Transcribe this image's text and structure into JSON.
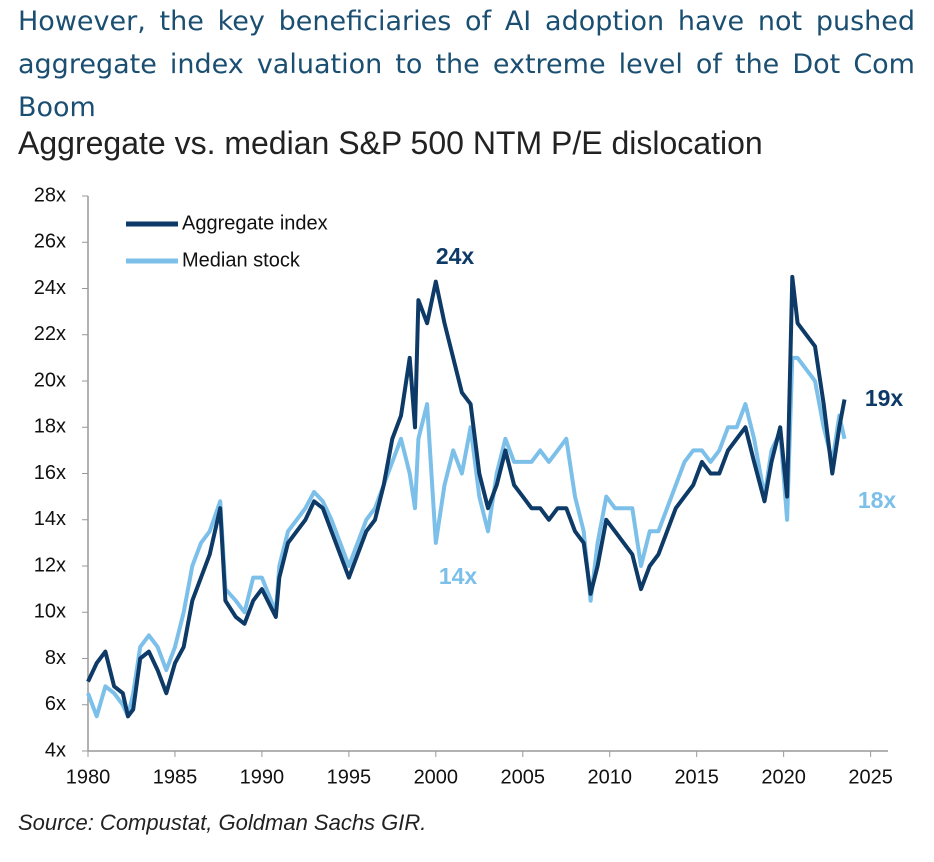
{
  "chart_data": {
    "type": "line",
    "title": "However, the key beneficiaries of AI adoption have not pushed aggregate index valuation to the extreme level of the Dot Com Boom",
    "subtitle": "Aggregate vs. median S&P 500 NTM P/E dislocation",
    "source": "Source: Compustat, Goldman Sachs GIR.",
    "x": [
      1980,
      1980.5,
      1981,
      1981.5,
      1982,
      1982.3,
      1982.6,
      1983,
      1983.5,
      1984,
      1984.5,
      1985,
      1985.5,
      1986,
      1986.5,
      1987,
      1987.6,
      1987.9,
      1988.5,
      1989,
      1989.5,
      1990,
      1990.8,
      1991,
      1991.5,
      1992,
      1992.5,
      1993,
      1993.5,
      1994,
      1994.5,
      1995,
      1995.5,
      1996,
      1996.5,
      1997,
      1997.5,
      1998,
      1998.5,
      1998.8,
      1999,
      1999.5,
      2000,
      2000.5,
      2001,
      2001.5,
      2002,
      2002.5,
      2003,
      2003.5,
      2004,
      2004.5,
      2005,
      2005.5,
      2006,
      2006.5,
      2007,
      2007.5,
      2008,
      2008.5,
      2008.9,
      2009.3,
      2009.8,
      2010.3,
      2010.8,
      2011.3,
      2011.8,
      2012.3,
      2012.8,
      2013.3,
      2013.8,
      2014.3,
      2014.8,
      2015.3,
      2015.8,
      2016.3,
      2016.8,
      2017.3,
      2017.8,
      2018.3,
      2018.9,
      2019.3,
      2019.8,
      2020.2,
      2020.5,
      2020.8,
      2021.3,
      2021.8,
      2022.3,
      2022.8,
      2023.2,
      2023.5
    ],
    "series": [
      {
        "name": "Median stock",
        "color": "#7cc0ea",
        "values": [
          6.5,
          5.5,
          6.8,
          6.5,
          6.0,
          5.5,
          6.5,
          8.5,
          9.0,
          8.5,
          7.5,
          8.5,
          10.0,
          12.0,
          13.0,
          13.5,
          14.8,
          11.0,
          10.5,
          10.0,
          11.5,
          11.5,
          10.0,
          12.0,
          13.5,
          14.0,
          14.5,
          15.2,
          14.8,
          14.0,
          13.0,
          12.0,
          13.0,
          14.0,
          14.5,
          15.5,
          16.5,
          17.5,
          16.0,
          14.5,
          17.5,
          19.0,
          13.0,
          15.5,
          17.0,
          16.0,
          18.0,
          15.0,
          13.5,
          16.0,
          17.5,
          16.5,
          16.5,
          16.5,
          17.0,
          16.5,
          17.0,
          17.5,
          15.0,
          13.5,
          10.5,
          13.0,
          15.0,
          14.5,
          14.5,
          14.5,
          12.0,
          13.5,
          13.5,
          14.5,
          15.5,
          16.5,
          17.0,
          17.0,
          16.5,
          17.0,
          18.0,
          18.0,
          19.0,
          17.5,
          15.0,
          17.0,
          17.8,
          14.0,
          21.0,
          21.0,
          20.5,
          20.0,
          18.0,
          16.5,
          18.5,
          17.5
        ]
      },
      {
        "name": "Aggregate index",
        "color": "#0d3a66",
        "values": [
          7.0,
          7.8,
          8.3,
          6.8,
          6.5,
          5.5,
          5.8,
          8.0,
          8.3,
          7.5,
          6.5,
          7.8,
          8.5,
          10.5,
          11.5,
          12.5,
          14.5,
          10.5,
          9.8,
          9.5,
          10.5,
          11.0,
          9.8,
          11.5,
          13.0,
          13.5,
          14.0,
          14.8,
          14.5,
          13.5,
          12.5,
          11.5,
          12.5,
          13.5,
          14.0,
          15.5,
          17.5,
          18.5,
          21.0,
          18.0,
          23.5,
          22.5,
          24.3,
          22.5,
          21.0,
          19.5,
          19.0,
          16.0,
          14.5,
          15.5,
          17.0,
          15.5,
          15.0,
          14.5,
          14.5,
          14.0,
          14.5,
          14.5,
          13.5,
          13.0,
          10.8,
          12.0,
          14.0,
          13.5,
          13.0,
          12.5,
          11.0,
          12.0,
          12.5,
          13.5,
          14.5,
          15.0,
          15.5,
          16.5,
          16.0,
          16.0,
          17.0,
          17.5,
          18.0,
          16.5,
          14.8,
          16.5,
          18.0,
          15.0,
          24.5,
          22.5,
          22.0,
          21.5,
          19.0,
          16.0,
          18.0,
          19.2
        ]
      }
    ],
    "xlim": [
      1980,
      2026
    ],
    "xticks": [
      1980,
      1985,
      1990,
      1995,
      2000,
      2005,
      2010,
      2015,
      2020,
      2025
    ],
    "ylim": [
      4,
      28
    ],
    "yticks": [
      {
        "value": 4,
        "label": "4x"
      },
      {
        "value": 6,
        "label": "6x"
      },
      {
        "value": 8,
        "label": "8x"
      },
      {
        "value": 10,
        "label": "10x"
      },
      {
        "value": 12,
        "label": "12x"
      },
      {
        "value": 14,
        "label": "14x"
      },
      {
        "value": 16,
        "label": "16x"
      },
      {
        "value": 18,
        "label": "18x"
      },
      {
        "value": 20,
        "label": "20x"
      },
      {
        "value": 22,
        "label": "22x"
      },
      {
        "value": 24,
        "label": "24x"
      },
      {
        "value": 26,
        "label": "26x"
      },
      {
        "value": 28,
        "label": "28x"
      }
    ],
    "grid": false,
    "legend": "upper left",
    "annotations": [
      {
        "text": "24x",
        "color": "#0d3a66"
      },
      {
        "text": "14x",
        "color": "#7cc0ea"
      },
      {
        "text": "19x",
        "color": "#0d3a66"
      },
      {
        "text": "18x",
        "color": "#7cc0ea"
      }
    ]
  }
}
